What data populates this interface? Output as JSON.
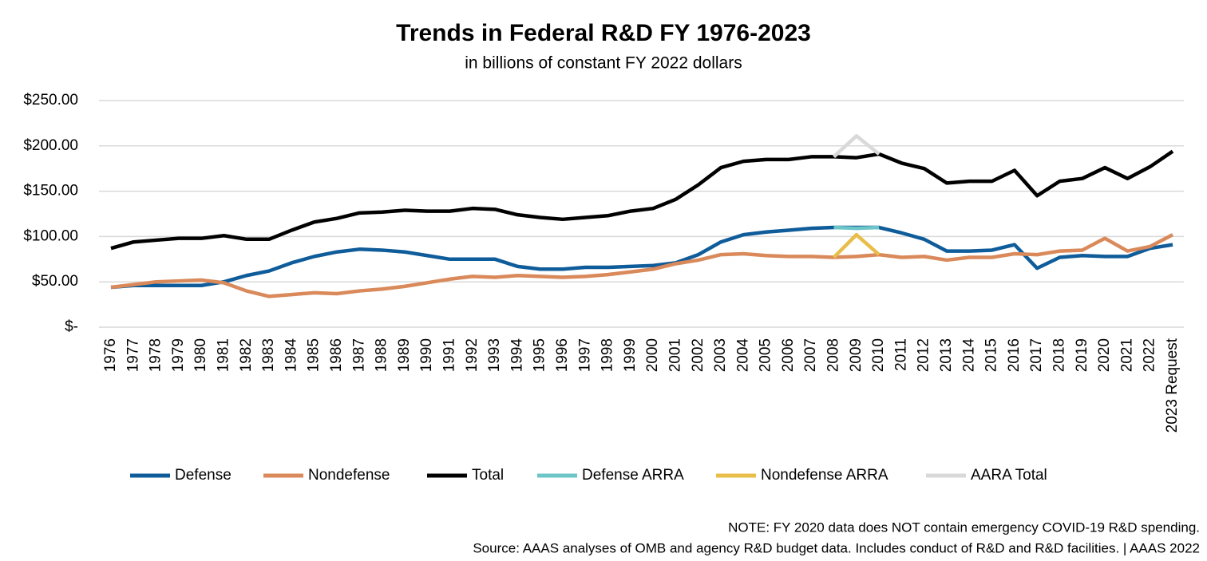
{
  "chart_data": {
    "type": "line",
    "title": "Trends in Federal R&D FY 1976-2023",
    "subtitle": "in billions of constant FY 2022 dollars",
    "notes": [
      "NOTE: FY 2020 data does NOT contain emergency COVID-19 R&D spending.",
      "Source: AAAS analyses of OMB and agency R&D budget data. Includes conduct of R&D and R&D facilities. | AAAS 2022"
    ],
    "categories": [
      "1976",
      "1977",
      "1978",
      "1979",
      "1980",
      "1981",
      "1982",
      "1983",
      "1984",
      "1985",
      "1986",
      "1987",
      "1988",
      "1989",
      "1990",
      "1991",
      "1992",
      "1993",
      "1994",
      "1995",
      "1996",
      "1997",
      "1998",
      "1999",
      "2000",
      "2001",
      "2002",
      "2003",
      "2004",
      "2005",
      "2006",
      "2007",
      "2008",
      "2009",
      "2010",
      "2011",
      "2012",
      "2013",
      "2014",
      "2015",
      "2016",
      "2017",
      "2018",
      "2019",
      "2020",
      "2021",
      "2022",
      "2023 Request"
    ],
    "ylim": [
      0,
      250
    ],
    "yticks": [
      {
        "value": 0,
        "label": "$-"
      },
      {
        "value": 50,
        "label": "$50.00"
      },
      {
        "value": 100,
        "label": "$100.00"
      },
      {
        "value": 150,
        "label": "$150.00"
      },
      {
        "value": 200,
        "label": "$200.00"
      },
      {
        "value": 250,
        "label": "$250.00"
      }
    ],
    "grid": true,
    "legend": "bottom",
    "series": [
      {
        "name": "Defense",
        "color": "#0f5c9a",
        "values": [
          44,
          46,
          46,
          46,
          46,
          50,
          57,
          62,
          71,
          78,
          83,
          86,
          85,
          83,
          79,
          75,
          75,
          75,
          67,
          64,
          64,
          66,
          66,
          67,
          68,
          71,
          80,
          94,
          102,
          105,
          107,
          109,
          110,
          110,
          110,
          104,
          97,
          84,
          84,
          85,
          91,
          65,
          77,
          79,
          78,
          78,
          87,
          91
        ]
      },
      {
        "name": "Nondefense",
        "color": "#d9895a",
        "values": [
          44,
          47,
          50,
          51,
          52,
          49,
          40,
          34,
          36,
          38,
          37,
          40,
          42,
          45,
          49,
          53,
          56,
          55,
          57,
          56,
          55,
          56,
          58,
          61,
          64,
          70,
          74,
          80,
          81,
          79,
          78,
          78,
          77,
          78,
          80,
          77,
          78,
          74,
          77,
          77,
          81,
          80,
          84,
          85,
          98,
          84,
          89,
          102
        ]
      },
      {
        "name": "Total",
        "color": "#000000",
        "values": [
          87,
          94,
          96,
          98,
          98,
          101,
          97,
          97,
          107,
          116,
          120,
          126,
          127,
          129,
          128,
          128,
          131,
          130,
          124,
          121,
          119,
          121,
          123,
          128,
          131,
          141,
          157,
          176,
          183,
          185,
          185,
          188,
          188,
          187,
          191,
          181,
          175,
          159,
          161,
          161,
          173,
          145,
          161,
          164,
          176,
          164,
          177,
          194
        ]
      },
      {
        "name": "Defense ARRA",
        "color": "#6cc5c7",
        "values": [
          null,
          null,
          null,
          null,
          null,
          null,
          null,
          null,
          null,
          null,
          null,
          null,
          null,
          null,
          null,
          null,
          null,
          null,
          null,
          null,
          null,
          null,
          null,
          null,
          null,
          null,
          null,
          null,
          null,
          null,
          null,
          null,
          110,
          109,
          110,
          null,
          null,
          null,
          null,
          null,
          null,
          null,
          null,
          null,
          null,
          null,
          null,
          null
        ]
      },
      {
        "name": "Nondefense ARRA",
        "color": "#e8bd4a",
        "values": [
          null,
          null,
          null,
          null,
          null,
          null,
          null,
          null,
          null,
          null,
          null,
          null,
          null,
          null,
          null,
          null,
          null,
          null,
          null,
          null,
          null,
          null,
          null,
          null,
          null,
          null,
          null,
          null,
          null,
          null,
          null,
          null,
          77,
          102,
          80,
          null,
          null,
          null,
          null,
          null,
          null,
          null,
          null,
          null,
          null,
          null,
          null,
          null
        ]
      },
      {
        "name": "AARA Total",
        "color": "#d9d9d9",
        "values": [
          null,
          null,
          null,
          null,
          null,
          null,
          null,
          null,
          null,
          null,
          null,
          null,
          null,
          null,
          null,
          null,
          null,
          null,
          null,
          null,
          null,
          null,
          null,
          null,
          null,
          null,
          null,
          null,
          null,
          null,
          null,
          null,
          188,
          211,
          191,
          null,
          null,
          null,
          null,
          null,
          null,
          null,
          null,
          null,
          null,
          null,
          null,
          null
        ]
      }
    ]
  }
}
